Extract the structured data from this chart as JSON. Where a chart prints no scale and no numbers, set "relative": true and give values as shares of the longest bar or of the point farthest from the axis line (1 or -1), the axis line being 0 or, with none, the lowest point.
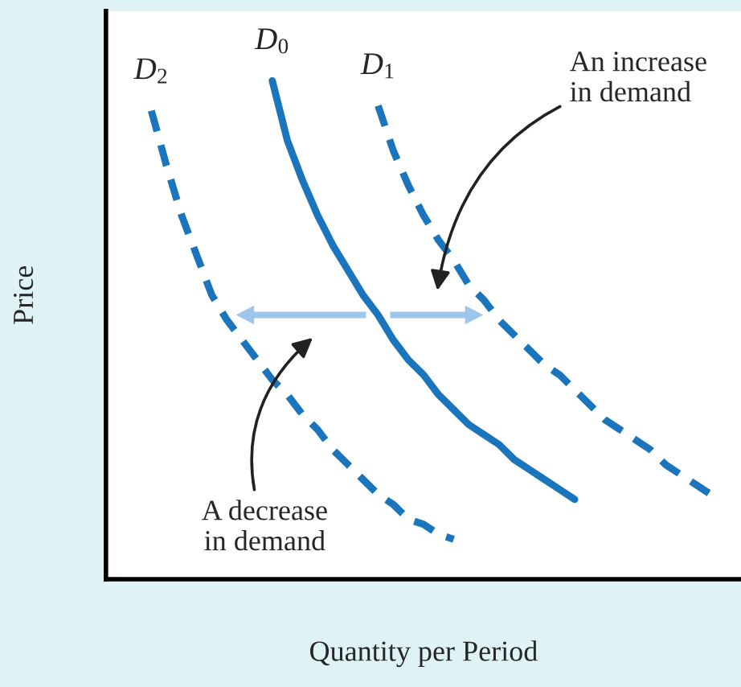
{
  "chart_data": {
    "type": "line",
    "relative": true,
    "xlabel": "Quantity per Period",
    "ylabel": "Price",
    "categories": [
      null,
      null,
      null,
      null,
      null,
      null,
      null,
      null,
      null,
      null,
      null,
      null,
      null,
      null,
      null,
      null,
      null,
      null,
      null,
      null,
      null,
      null,
      null,
      null,
      null,
      null,
      null,
      null,
      null,
      null,
      null,
      null,
      null,
      null,
      null,
      null,
      null,
      null,
      null,
      null,
      null
    ],
    "series": [
      {
        "name": "D$_{2}$",
        "color": "#1b75bc",
        "line_style": "dashed",
        "values": [
          null,
          null,
          null,
          0.94,
          0.83,
          0.73,
          0.65,
          0.57,
          0.52,
          0.48,
          0.44,
          0.4,
          0.37,
          0.33,
          0.3,
          0.26,
          0.23,
          0.2,
          0.17,
          0.15,
          0.12,
          0.11,
          0.09,
          0.08,
          null,
          null,
          null,
          null,
          null,
          null,
          null,
          null,
          null,
          null,
          null,
          null,
          null,
          null,
          null,
          null,
          null
        ]
      },
      {
        "name": "D$_{0}$",
        "color": "#1b75bc",
        "line_style": "solid",
        "values": [
          null,
          null,
          null,
          null,
          null,
          null,
          null,
          null,
          null,
          null,
          null,
          1.0,
          0.88,
          0.8,
          0.73,
          0.67,
          0.62,
          0.57,
          0.53,
          0.48,
          0.44,
          0.41,
          0.37,
          0.34,
          0.31,
          0.29,
          0.27,
          0.24,
          0.22,
          0.2,
          0.18,
          0.16,
          null,
          null,
          null,
          null,
          null,
          null,
          null,
          null,
          null
        ]
      },
      {
        "name": "D$_{1}$",
        "color": "#1b75bc",
        "line_style": "dashed",
        "values": [
          null,
          null,
          null,
          null,
          null,
          null,
          null,
          null,
          null,
          null,
          null,
          null,
          null,
          null,
          null,
          null,
          null,
          null,
          0.95,
          0.86,
          0.79,
          0.73,
          0.68,
          0.64,
          0.59,
          0.56,
          0.52,
          0.49,
          0.46,
          0.43,
          0.41,
          0.38,
          0.35,
          0.32,
          0.3,
          0.28,
          0.26,
          0.23,
          0.21,
          0.19,
          0.17
        ]
      }
    ],
    "annotations": [
      "An increase\nin demand",
      "A decrease\nin demand"
    ]
  }
}
